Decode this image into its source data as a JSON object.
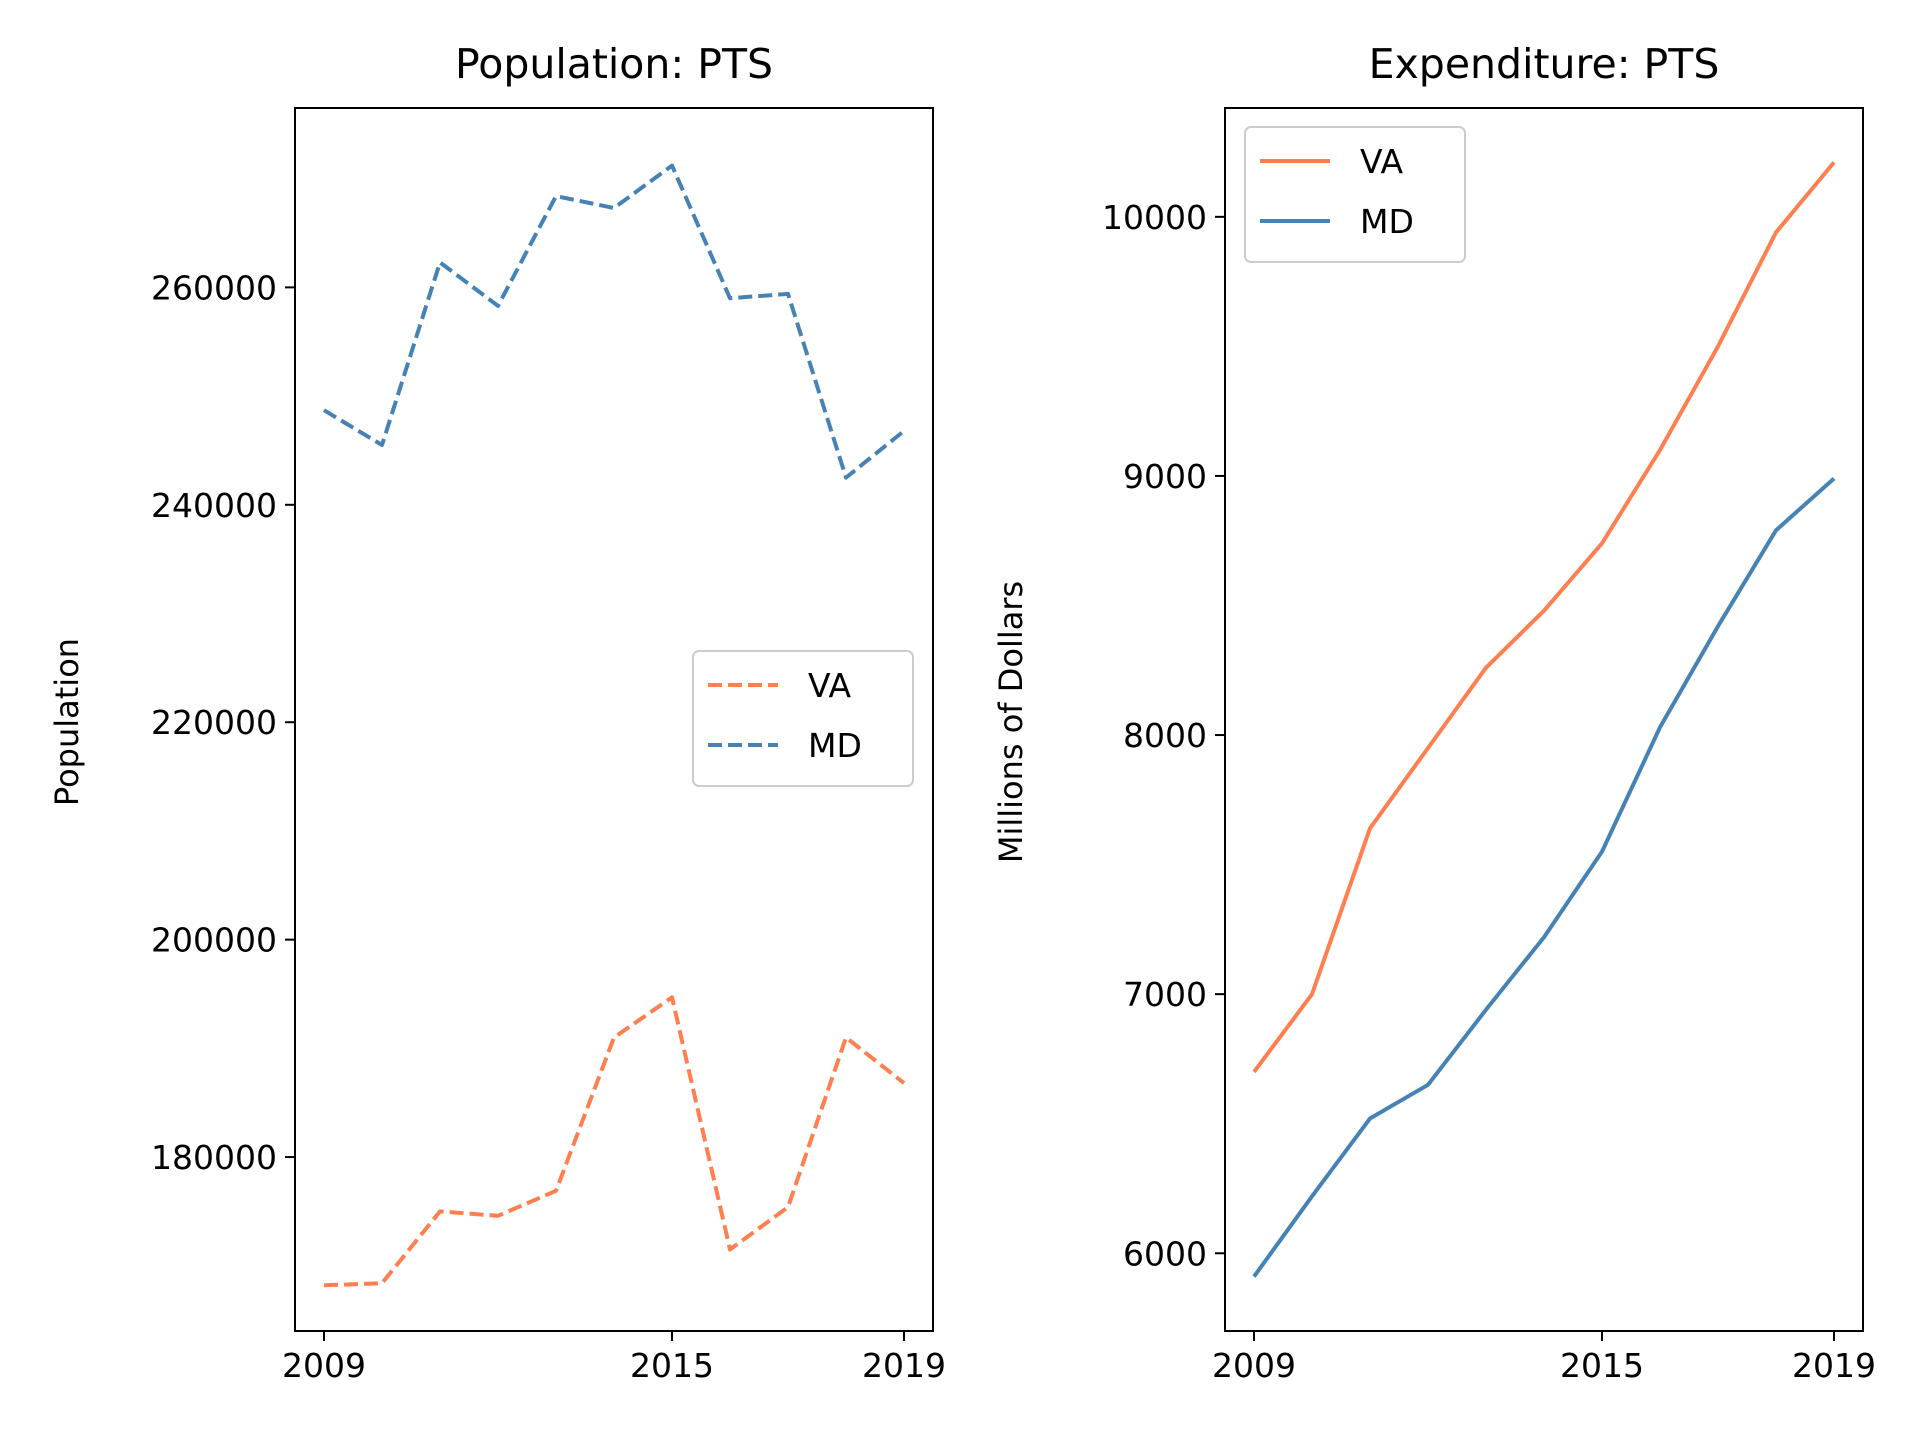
{
  "chart_data": [
    {
      "type": "line",
      "title": "Population: PTS",
      "xlabel": "",
      "ylabel": "Population",
      "x": [
        2009,
        2010,
        2011,
        2012,
        2013,
        2014,
        2015,
        2016,
        2017,
        2018,
        2019
      ],
      "xticks": [
        "2009",
        "2015",
        "2019"
      ],
      "xlim": [
        2008.5,
        2019.5
      ],
      "ylim": [
        164000,
        276500
      ],
      "yticks": [
        "180000",
        "200000",
        "220000",
        "240000",
        "260000"
      ],
      "line_style": "dashed",
      "legend_position": "center right",
      "series": [
        {
          "name": "VA",
          "color": "#FF7F50",
          "values": [
            168200,
            168400,
            175000,
            174600,
            176900,
            191000,
            194700,
            171500,
            175400,
            191000,
            186800
          ]
        },
        {
          "name": "MD",
          "color": "#4682B4",
          "values": [
            248700,
            245500,
            262300,
            258300,
            268400,
            267300,
            271200,
            259000,
            259400,
            242500,
            246800
          ]
        }
      ]
    },
    {
      "type": "line",
      "title": "Expenditure: PTS",
      "xlabel": "",
      "ylabel": "Millions of Dollars",
      "x": [
        2009,
        2010,
        2011,
        2012,
        2013,
        2014,
        2015,
        2016,
        2017,
        2018,
        2019
      ],
      "xticks": [
        "2009",
        "2015",
        "2019"
      ],
      "xlim": [
        2008.5,
        2019.5
      ],
      "ylim": [
        5700,
        10420
      ],
      "yticks": [
        "6000",
        "7000",
        "8000",
        "9000",
        "10000"
      ],
      "line_style": "solid",
      "legend_position": "upper left",
      "series": [
        {
          "name": "VA",
          "color": "#FF7F50",
          "values": [
            6700,
            7000,
            7640,
            7950,
            8260,
            8480,
            8740,
            9100,
            9500,
            9940,
            10210
          ]
        },
        {
          "name": "MD",
          "color": "#4682B4",
          "values": [
            5910,
            6220,
            6520,
            6650,
            6940,
            7220,
            7550,
            8030,
            8420,
            8790,
            8990
          ]
        }
      ]
    }
  ]
}
